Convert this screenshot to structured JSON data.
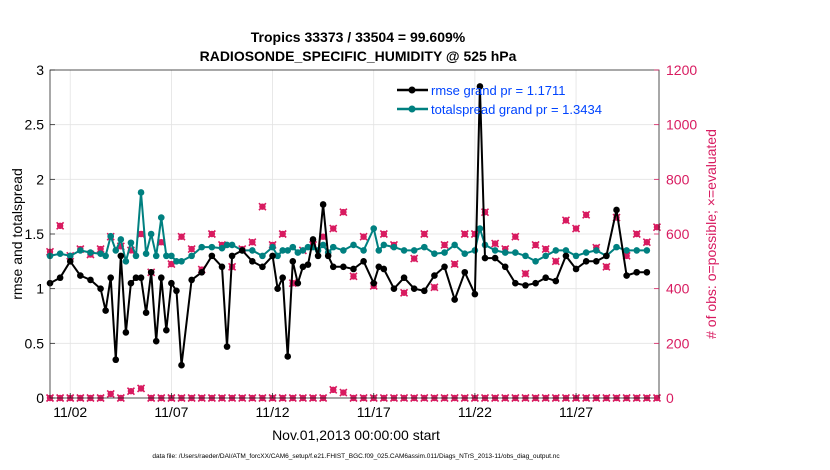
{
  "chart_data": {
    "type": "line",
    "title_line1": "Tropics 33373 / 33504 = 99.609%",
    "title_line2": "RADIOSONDE_SPECIFIC_HUMIDITY @ 525 hPa",
    "xlabel": "Nov.01,2013 00:00:00 start",
    "ylabel_left": "rmse and totalspread",
    "ylabel_right": "# of obs: o=possible; ×=evaluated",
    "footer": "data file: /Users/raeder/DAI/ATM_forcXX/CAM6_setup/f.e21.FHIST_BGC.f09_025.CAM6assim.011/Diags_NTrS_2013-11/obs_diag_output.nc",
    "x_ticks": [
      {
        "x": 2,
        "label": "11/02"
      },
      {
        "x": 7,
        "label": "11/07"
      },
      {
        "x": 12,
        "label": "11/12"
      },
      {
        "x": 17,
        "label": "11/17"
      },
      {
        "x": 22,
        "label": "11/22"
      },
      {
        "x": 27,
        "label": "11/27"
      }
    ],
    "xlim": [
      1,
      31.1
    ],
    "ylim_left": [
      0,
      3
    ],
    "ylim_right": [
      0,
      1200
    ],
    "y_ticks_left": [
      "0",
      "0.5",
      "1",
      "1.5",
      "2",
      "2.5",
      "3"
    ],
    "y_ticks_right": [
      "0",
      "200",
      "400",
      "600",
      "800",
      "1000",
      "1200"
    ],
    "legend": [
      {
        "label": "rmse grand pr = 1.1711",
        "color": "#000000"
      },
      {
        "label": "totalspread grand pr = 1.3434",
        "color": "#008080"
      }
    ],
    "colors": {
      "rmse": "#000000",
      "spread": "#008080",
      "obs": "#d81b60",
      "legend_text": "#0044ff"
    },
    "series": [
      {
        "name": "rmse",
        "x": [
          1,
          1.5,
          2,
          2.5,
          3,
          3.5,
          3.75,
          4,
          4.25,
          4.5,
          4.75,
          5,
          5.25,
          5.5,
          5.75,
          6,
          6.25,
          6.5,
          6.75,
          7,
          7.25,
          7.5,
          8,
          8.5,
          9,
          9.5,
          9.75,
          10,
          10.5,
          11,
          11.5,
          12,
          12.25,
          12.5,
          12.75,
          13,
          13.25,
          13.5,
          13.75,
          14,
          14.25,
          14.5,
          14.75,
          15,
          15.5,
          16,
          16.5,
          17,
          17.25,
          17.5,
          18,
          18.5,
          19,
          19.5,
          20,
          20.5,
          21,
          21.5,
          22,
          22.25,
          22.5,
          23,
          23.5,
          24,
          24.5,
          25,
          25.5,
          26,
          26.5,
          27,
          27.5,
          28,
          28.5,
          29,
          29.5,
          30,
          30.5
        ],
        "values": [
          1.05,
          1.1,
          1.25,
          1.12,
          1.08,
          1.0,
          0.8,
          1.1,
          0.35,
          1.3,
          0.6,
          1.05,
          1.1,
          1.1,
          0.78,
          1.15,
          0.52,
          1.1,
          0.62,
          1.05,
          0.98,
          0.3,
          1.08,
          1.15,
          1.3,
          1.2,
          0.47,
          1.3,
          1.35,
          1.25,
          1.2,
          1.3,
          1.0,
          1.1,
          0.38,
          1.25,
          1.05,
          1.2,
          1.22,
          1.45,
          1.3,
          1.77,
          1.3,
          1.2,
          1.2,
          1.18,
          1.25,
          1.05,
          1.2,
          1.18,
          1.0,
          1.1,
          1.0,
          0.98,
          1.12,
          1.2,
          0.9,
          1.15,
          0.95,
          2.85,
          1.28,
          1.28,
          1.2,
          1.05,
          1.03,
          1.05,
          1.1,
          1.07,
          1.3,
          1.18,
          1.25,
          1.25,
          1.3,
          1.72,
          1.12,
          1.15,
          1.15
        ]
      },
      {
        "name": "totalspread",
        "x": [
          1,
          1.5,
          2,
          2.5,
          3,
          3.5,
          3.75,
          4,
          4.25,
          4.5,
          4.75,
          5,
          5.25,
          5.5,
          5.75,
          6,
          6.25,
          6.5,
          6.75,
          7,
          7.25,
          7.5,
          8,
          8.5,
          9,
          9.5,
          9.75,
          10,
          10.5,
          11,
          11.5,
          12,
          12.25,
          12.5,
          12.75,
          13,
          13.25,
          13.5,
          13.75,
          14,
          14.25,
          14.5,
          14.75,
          15,
          15.5,
          16,
          16.5,
          17,
          17.25,
          17.5,
          18,
          18.5,
          19,
          19.5,
          20,
          20.5,
          21,
          21.5,
          22,
          22.25,
          22.5,
          23,
          23.5,
          24,
          24.5,
          25,
          25.5,
          26,
          26.5,
          27,
          27.5,
          28,
          28.5,
          29,
          29.5,
          30,
          30.5
        ],
        "values": [
          1.3,
          1.32,
          1.3,
          1.35,
          1.33,
          1.32,
          1.3,
          1.48,
          1.35,
          1.45,
          1.25,
          1.42,
          1.3,
          1.88,
          1.32,
          1.5,
          1.3,
          1.65,
          1.3,
          1.3,
          1.25,
          1.25,
          1.3,
          1.38,
          1.38,
          1.37,
          1.4,
          1.4,
          1.35,
          1.35,
          1.3,
          1.38,
          1.3,
          1.35,
          1.35,
          1.38,
          1.33,
          1.35,
          1.38,
          1.38,
          1.35,
          1.4,
          1.33,
          1.38,
          1.35,
          1.4,
          1.35,
          1.55,
          1.35,
          1.4,
          1.38,
          1.35,
          1.35,
          1.38,
          1.32,
          1.33,
          1.4,
          1.32,
          1.35,
          1.55,
          1.4,
          1.35,
          1.33,
          1.33,
          1.3,
          1.25,
          1.3,
          1.35,
          1.35,
          1.3,
          1.33,
          1.35,
          1.3,
          1.38,
          1.35,
          1.35,
          1.35
        ]
      },
      {
        "name": "obs_possible",
        "x": [
          1,
          1.5,
          2,
          2.5,
          3,
          3.5,
          4,
          4.5,
          5,
          5.5,
          6,
          6.5,
          7,
          7.5,
          8,
          8.5,
          9,
          9.5,
          10,
          10.5,
          11,
          11.5,
          12,
          12.5,
          13,
          13.5,
          14,
          14.5,
          15,
          15.5,
          16,
          16.5,
          17,
          17.5,
          18,
          18.5,
          19,
          19.5,
          20,
          20.5,
          21,
          21.5,
          22,
          22.5,
          23,
          23.5,
          24,
          24.5,
          25,
          25.5,
          26,
          26.5,
          27,
          27.5,
          28,
          28.5,
          29,
          29.5,
          30,
          30.5,
          31
        ],
        "values": [
          535,
          630,
          520,
          545,
          525,
          545,
          590,
          555,
          540,
          600,
          460,
          570,
          490,
          590,
          545,
          470,
          600,
          560,
          480,
          545,
          570,
          700,
          560,
          600,
          420,
          540,
          560,
          590,
          620,
          680,
          445,
          590,
          410,
          600,
          560,
          385,
          510,
          600,
          405,
          560,
          490,
          600,
          600,
          680,
          565,
          545,
          590,
          455,
          560,
          545,
          500,
          650,
          620,
          670,
          550,
          480,
          660,
          520,
          600,
          570,
          625
        ]
      },
      {
        "name": "obs_evaluated",
        "x": [
          1,
          1.5,
          2,
          2.5,
          3,
          3.5,
          4,
          4.5,
          5,
          5.5,
          6,
          6.5,
          7,
          7.5,
          8,
          8.5,
          9,
          9.5,
          10,
          10.5,
          11,
          11.5,
          12,
          12.5,
          13,
          13.5,
          14,
          14.5,
          15,
          15.5,
          16,
          16.5,
          17,
          17.5,
          18,
          18.5,
          19,
          19.5,
          20,
          20.5,
          21,
          21.5,
          22,
          22.5,
          23,
          23.5,
          24,
          24.5,
          25,
          25.5,
          26,
          26.5,
          27,
          27.5,
          28,
          28.5,
          29,
          29.5,
          30,
          30.5,
          31
        ],
        "values": [
          0,
          0,
          0,
          0,
          0,
          0,
          15,
          0,
          25,
          35,
          0,
          0,
          0,
          0,
          0,
          0,
          0,
          0,
          0,
          0,
          0,
          0,
          0,
          0,
          0,
          0,
          0,
          0,
          30,
          20,
          0,
          0,
          0,
          0,
          0,
          0,
          0,
          0,
          0,
          0,
          0,
          0,
          0,
          0,
          0,
          0,
          0,
          0,
          0,
          0,
          0,
          0,
          0,
          0,
          0,
          0,
          0,
          0,
          0,
          0,
          0
        ]
      }
    ]
  }
}
